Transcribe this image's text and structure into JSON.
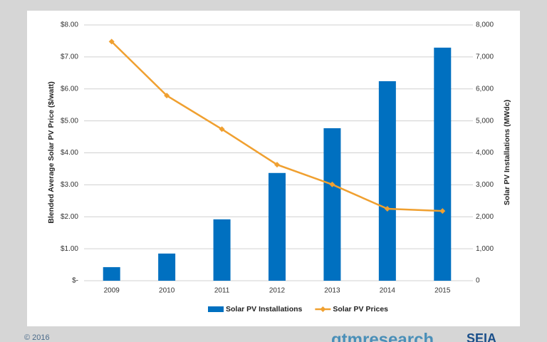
{
  "chart_data": {
    "type": "combo",
    "categories": [
      "2009",
      "2010",
      "2011",
      "2012",
      "2013",
      "2014",
      "2015"
    ],
    "series": [
      {
        "name": "Solar PV Installations",
        "type": "bar",
        "axis": "y2",
        "color": "#0070c0",
        "values": [
          425,
          850,
          1920,
          3370,
          4770,
          6240,
          7290
        ]
      },
      {
        "name": "Solar PV Prices",
        "type": "line",
        "axis": "y",
        "color": "#f0a030",
        "values": [
          7.48,
          5.79,
          4.74,
          3.63,
          3.01,
          2.25,
          2.18
        ]
      }
    ],
    "y_label": "Blended Average Solar PV Price ($/watt)",
    "y2_label": "Solar PV Installations (MWdc)",
    "ylim": [
      0,
      8
    ],
    "yticks": [
      {
        "value": 0,
        "label": "$-"
      },
      {
        "value": 1,
        "label": "$1.00"
      },
      {
        "value": 2,
        "label": "$2.00"
      },
      {
        "value": 3,
        "label": "$3.00"
      },
      {
        "value": 4,
        "label": "$4.00"
      },
      {
        "value": 5,
        "label": "$5.00"
      },
      {
        "value": 6,
        "label": "$6.00"
      },
      {
        "value": 7,
        "label": "$7.00"
      },
      {
        "value": 8,
        "label": "$8.00"
      }
    ],
    "y2lim": [
      0,
      8000
    ],
    "y2ticks": [
      0,
      {
        "value": 1000,
        "label": "1,000"
      },
      {
        "value": 2000,
        "label": "2,000"
      },
      {
        "value": 3000,
        "label": "3,000"
      },
      {
        "value": 4000,
        "label": "4,000"
      },
      {
        "value": 5000,
        "label": "5,000"
      },
      {
        "value": 6000,
        "label": "6,000"
      },
      {
        "value": 7000,
        "label": "7,000"
      },
      {
        "value": 8000,
        "label": "8,000"
      }
    ],
    "grid": true,
    "legend": "bottom"
  },
  "footer": {
    "copyright": "© 2016",
    "logos": [
      "gtmresearch",
      "SEIA"
    ]
  }
}
